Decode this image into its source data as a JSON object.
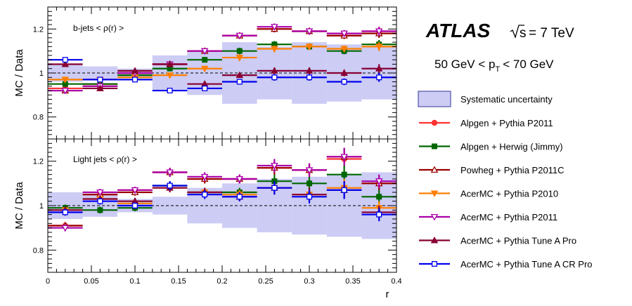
{
  "header": {
    "experiment": "ATLAS",
    "energy_root": "s",
    "energy_value": "= 7 TeV",
    "pt_cut_left": "50 GeV < p",
    "pt_cut_sub": "T",
    "pt_cut_right": "< 70 GeV"
  },
  "legend": {
    "syst_label": "Systematic uncertainty",
    "entries": [
      {
        "label": "Alpgen + Pythia P2011",
        "color": "#ff3333",
        "marker": "circle-filled"
      },
      {
        "label": "Alpgen + Herwig (Jimmy)",
        "color": "#006600",
        "marker": "square-filled"
      },
      {
        "label": "Powheg + Pythia P2011C",
        "color": "#990000",
        "marker": "triangle-up-open"
      },
      {
        "label": "AcerMC + Pythia P2010",
        "color": "#ff7f00",
        "marker": "triangle-down-filled"
      },
      {
        "label": "AcerMC + Pythia P2011",
        "color": "#aa00aa",
        "marker": "triangle-down-open"
      },
      {
        "label": "AcerMC + Pythia Tune A Pro",
        "color": "#880033",
        "marker": "triangle-up-filled"
      },
      {
        "label": "AcerMC + Pythia Tune A CR Pro",
        "color": "#0000ee",
        "marker": "square-open"
      }
    ]
  },
  "colors": {
    "band": "#ccccf5",
    "band_stroke": "#333399"
  },
  "chart_data": [
    {
      "type": "line",
      "title": "b-jets  < ρ(r) >",
      "xlabel": "r",
      "ylabel": "MC / Data",
      "xlim": [
        0,
        0.4
      ],
      "ylim": [
        0.7,
        1.3
      ],
      "yticks": [
        "0.8",
        "1",
        "1.2"
      ],
      "xticks": [
        "0",
        "0.05",
        "0.1",
        "0.15",
        "0.2",
        "0.25",
        "0.3",
        "0.35",
        "0.4"
      ],
      "bin_edges": [
        0,
        0.04,
        0.08,
        0.12,
        0.16,
        0.2,
        0.24,
        0.28,
        0.32,
        0.36,
        0.4
      ],
      "syst_band": [
        0.04,
        0.03,
        0.02,
        0.08,
        0.1,
        0.14,
        0.12,
        0.14,
        0.13,
        0.12
      ],
      "series": [
        {
          "name": "Alpgen + Pythia P2011",
          "values": [
            0.93,
            0.95,
            1.0,
            1.04,
            1.1,
            1.17,
            1.2,
            1.19,
            1.17,
            1.19
          ],
          "err": [
            0.01,
            0.01,
            0.01,
            0.01,
            0.01,
            0.01,
            0.015,
            0.015,
            0.015,
            0.02
          ]
        },
        {
          "name": "Alpgen + Herwig (Jimmy)",
          "values": [
            0.95,
            0.95,
            0.99,
            1.02,
            1.06,
            1.1,
            1.13,
            1.12,
            1.1,
            1.13
          ],
          "err": [
            0.01,
            0.01,
            0.01,
            0.01,
            0.01,
            0.015,
            0.015,
            0.015,
            0.015,
            0.02
          ]
        },
        {
          "name": "Powheg + Pythia P2011C",
          "values": [
            0.92,
            0.94,
            1.0,
            1.04,
            1.1,
            1.17,
            1.2,
            1.19,
            1.17,
            1.18
          ],
          "err": [
            0.01,
            0.01,
            0.01,
            0.01,
            0.01,
            0.01,
            0.015,
            0.015,
            0.015,
            0.02
          ]
        },
        {
          "name": "AcerMC + Pythia P2010",
          "values": [
            0.97,
            0.97,
            0.98,
            0.99,
            1.02,
            1.07,
            1.11,
            1.12,
            1.11,
            1.12
          ],
          "err": [
            0.01,
            0.01,
            0.01,
            0.01,
            0.01,
            0.015,
            0.015,
            0.015,
            0.015,
            0.02
          ]
        },
        {
          "name": "AcerMC + Pythia P2011",
          "values": [
            0.92,
            0.94,
            1.0,
            1.04,
            1.1,
            1.17,
            1.21,
            1.19,
            1.18,
            1.19
          ],
          "err": [
            0.01,
            0.01,
            0.01,
            0.01,
            0.01,
            0.01,
            0.015,
            0.015,
            0.015,
            0.02
          ]
        },
        {
          "name": "AcerMC + Pythia Tune A Pro",
          "values": [
            1.04,
            0.93,
            1.01,
            1.04,
            0.95,
            0.99,
            1.01,
            1.01,
            1.0,
            1.02
          ],
          "err": [
            0.01,
            0.01,
            0.01,
            0.01,
            0.01,
            0.01,
            0.015,
            0.015,
            0.015,
            0.02
          ]
        },
        {
          "name": "AcerMC + Pythia Tune A CR Pro",
          "values": [
            1.06,
            0.97,
            0.97,
            0.92,
            0.93,
            0.96,
            0.98,
            0.98,
            0.96,
            0.98
          ],
          "err": [
            0.01,
            0.01,
            0.01,
            0.01,
            0.01,
            0.01,
            0.015,
            0.015,
            0.015,
            0.02
          ]
        }
      ]
    },
    {
      "type": "line",
      "title": "Light jets  < ρ(r) >",
      "xlabel": "r",
      "ylabel": "MC / Data",
      "xlim": [
        0,
        0.4
      ],
      "ylim": [
        0.7,
        1.3
      ],
      "yticks": [
        "0.8",
        "1",
        "1.2"
      ],
      "xticks": [
        "0",
        "0.05",
        "0.1",
        "0.15",
        "0.2",
        "0.25",
        "0.3",
        "0.35",
        "0.4"
      ],
      "bin_edges": [
        0,
        0.04,
        0.08,
        0.12,
        0.16,
        0.2,
        0.24,
        0.28,
        0.32,
        0.36,
        0.4
      ],
      "syst_band": [
        0.06,
        0.05,
        0.03,
        0.04,
        0.08,
        0.1,
        0.12,
        0.13,
        0.14,
        0.15
      ],
      "series": [
        {
          "name": "Alpgen + Pythia P2011",
          "values": [
            0.91,
            1.05,
            1.07,
            1.15,
            1.12,
            1.12,
            1.17,
            1.16,
            1.21,
            1.1
          ],
          "err": [
            0.015,
            0.015,
            0.015,
            0.02,
            0.02,
            0.02,
            0.03,
            0.03,
            0.04,
            0.03
          ]
        },
        {
          "name": "Alpgen + Herwig (Jimmy)",
          "values": [
            0.99,
            0.98,
            0.99,
            1.09,
            1.06,
            1.06,
            1.11,
            1.1,
            1.14,
            1.04
          ],
          "err": [
            0.015,
            0.015,
            0.015,
            0.02,
            0.02,
            0.02,
            0.03,
            0.03,
            0.04,
            0.03
          ]
        },
        {
          "name": "Powheg + Pythia P2011C",
          "values": [
            0.91,
            1.05,
            1.06,
            1.15,
            1.12,
            1.12,
            1.17,
            1.16,
            1.22,
            1.1
          ],
          "err": [
            0.015,
            0.015,
            0.015,
            0.02,
            0.02,
            0.02,
            0.03,
            0.03,
            0.04,
            0.03
          ]
        },
        {
          "name": "AcerMC + Pythia P2010",
          "values": [
            0.98,
            1.03,
            1.01,
            1.08,
            1.06,
            1.05,
            1.08,
            1.05,
            1.08,
            0.99
          ],
          "err": [
            0.015,
            0.015,
            0.015,
            0.02,
            0.02,
            0.02,
            0.03,
            0.03,
            0.04,
            0.03
          ]
        },
        {
          "name": "AcerMC + Pythia P2011",
          "values": [
            0.9,
            1.06,
            1.07,
            1.15,
            1.13,
            1.12,
            1.18,
            1.16,
            1.22,
            1.11
          ],
          "err": [
            0.015,
            0.015,
            0.015,
            0.02,
            0.02,
            0.02,
            0.03,
            0.03,
            0.04,
            0.03
          ]
        },
        {
          "name": "AcerMC + Pythia Tune A Pro",
          "values": [
            0.98,
            1.03,
            1.02,
            1.08,
            1.06,
            1.04,
            1.08,
            1.05,
            1.07,
            0.97
          ],
          "err": [
            0.015,
            0.015,
            0.015,
            0.02,
            0.02,
            0.02,
            0.03,
            0.03,
            0.04,
            0.03
          ]
        },
        {
          "name": "AcerMC + Pythia Tune A CR Pro",
          "values": [
            0.97,
            1.02,
            1.0,
            1.09,
            1.05,
            1.04,
            1.08,
            1.04,
            1.07,
            0.96
          ],
          "err": [
            0.015,
            0.015,
            0.015,
            0.02,
            0.02,
            0.02,
            0.03,
            0.03,
            0.04,
            0.03
          ]
        }
      ]
    }
  ]
}
